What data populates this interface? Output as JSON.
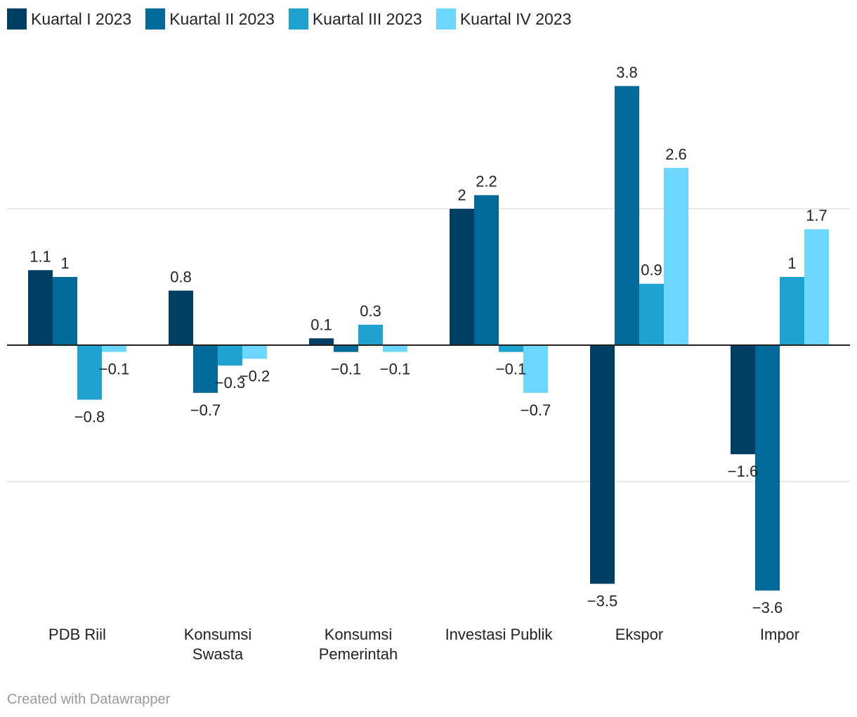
{
  "legend": [
    "Kuartal I 2023",
    "Kuartal II 2023",
    "Kuartal III 2023",
    "Kuartal IV 2023"
  ],
  "colors": [
    "#003f63",
    "#006b9a",
    "#1ea3d1",
    "#6cd7fc"
  ],
  "chart_data": {
    "type": "bar",
    "categories": [
      [
        "PDB Riil"
      ],
      [
        "Konsumsi",
        "Swasta"
      ],
      [
        "Konsumsi",
        "Pemerintah"
      ],
      [
        "Investasi Publik"
      ],
      [
        "Ekspor"
      ],
      [
        "Impor"
      ]
    ],
    "series": [
      {
        "name": "Kuartal I 2023",
        "values": [
          1.1,
          0.8,
          0.1,
          2,
          -3.5,
          -1.6
        ],
        "labels": [
          "1.1",
          "0.8",
          "0.1",
          "2",
          "−3.5",
          "−1.6"
        ]
      },
      {
        "name": "Kuartal II 2023",
        "values": [
          1,
          -0.7,
          -0.1,
          2.2,
          3.8,
          -3.6
        ],
        "labels": [
          "1",
          "−0.7",
          "−0.1",
          "2.2",
          "3.8",
          "−3.6"
        ]
      },
      {
        "name": "Kuartal III 2023",
        "values": [
          -0.8,
          -0.3,
          0.3,
          -0.1,
          0.9,
          1
        ],
        "labels": [
          "−0.8",
          "−0.3",
          "0.3",
          "−0.1",
          "0.9",
          "1"
        ]
      },
      {
        "name": "Kuartal IV 2023",
        "values": [
          -0.1,
          -0.2,
          -0.1,
          -0.7,
          2.6,
          1.7
        ],
        "labels": [
          "−0.1",
          "−0.2",
          "−0.1",
          "−0.7",
          "2.6",
          "1.7"
        ]
      }
    ],
    "gridlines": [
      2,
      -2
    ],
    "ylim": [
      -4,
      4.2
    ]
  },
  "footer": "Created with Datawrapper"
}
